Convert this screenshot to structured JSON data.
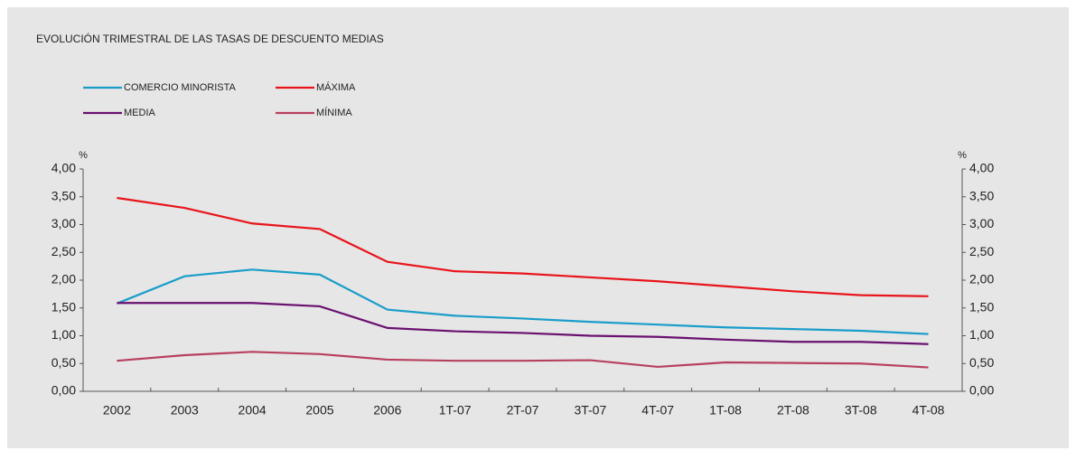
{
  "chart_data": {
    "type": "line",
    "title": "EVOLUCIÓN TRIMESTRAL DE LAS TASAS DE DESCUENTO MEDIAS",
    "ylabel": "%",
    "y2label": "%",
    "categories": [
      "2002",
      "2003",
      "2004",
      "2005",
      "2006",
      "1T-07",
      "2T-07",
      "3T-07",
      "4T-07",
      "1T-08",
      "2T-08",
      "3T-08",
      "4T-08"
    ],
    "series": [
      {
        "name": "COMERCIO MINORISTA",
        "color": "#1a9dc9",
        "values": [
          1.58,
          2.07,
          2.19,
          2.1,
          1.47,
          1.36,
          1.31,
          1.25,
          1.2,
          1.15,
          1.12,
          1.09,
          1.03
        ]
      },
      {
        "name": "MÁXIMA",
        "color": "#e8141a",
        "values": [
          3.48,
          3.3,
          3.02,
          2.92,
          2.33,
          2.16,
          2.12,
          2.05,
          1.98,
          1.89,
          1.8,
          1.73,
          1.71
        ]
      },
      {
        "name": "MEDIA",
        "color": "#6a1070",
        "values": [
          1.59,
          1.59,
          1.59,
          1.53,
          1.14,
          1.08,
          1.05,
          1.0,
          0.98,
          0.93,
          0.89,
          0.89,
          0.85
        ]
      },
      {
        "name": "MÍNIMA",
        "color": "#b8405f",
        "values": [
          0.55,
          0.65,
          0.71,
          0.67,
          0.57,
          0.55,
          0.55,
          0.56,
          0.44,
          0.52,
          0.51,
          0.5,
          0.43
        ]
      }
    ],
    "ylim": [
      0,
      4
    ],
    "yticks": [
      {
        "value": 0,
        "label": "0,00"
      },
      {
        "value": 0.5,
        "label": "0,50"
      },
      {
        "value": 1,
        "label": "1,00"
      },
      {
        "value": 1.5,
        "label": "1,50"
      },
      {
        "value": 2,
        "label": "2,00"
      },
      {
        "value": 2.5,
        "label": "2,50"
      },
      {
        "value": 3,
        "label": "3,00"
      },
      {
        "value": 3.5,
        "label": "3,50"
      },
      {
        "value": 4,
        "label": "4,00"
      }
    ],
    "y2lim": [
      0,
      4
    ],
    "y2ticks": [
      {
        "value": 0,
        "label": "0,00"
      },
      {
        "value": 0.5,
        "label": "0,50"
      },
      {
        "value": 1,
        "label": "1,00"
      },
      {
        "value": 1.5,
        "label": "1,50"
      },
      {
        "value": 2,
        "label": "2,00"
      },
      {
        "value": 2.5,
        "label": "2,50"
      },
      {
        "value": 3,
        "label": "3,00"
      },
      {
        "value": 3.5,
        "label": "3,50"
      },
      {
        "value": 4,
        "label": "4,00"
      }
    ],
    "grid": false
  }
}
